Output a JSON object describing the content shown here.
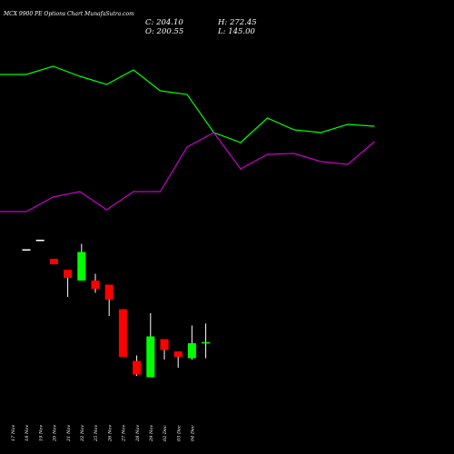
{
  "header": {
    "title": "MCX 9900  PE Options  Chart MunafaSutra.com",
    "close": "C: 204.10",
    "high": "H: 272.45",
    "open": "O: 200.55",
    "low": "L: 145.00"
  },
  "colors": {
    "background": "#000000",
    "bull": "#00ff00",
    "bear": "#ff0000",
    "neutral": "#ffffff",
    "wick": "#ffffff",
    "upper_line": "#00ff00",
    "lower_line": "#cc00cc"
  },
  "chart_data": {
    "type": "candlestick",
    "categories": [
      "17 Nov",
      "18 Nov",
      "19 Nov",
      "20 Nov",
      "21 Nov",
      "22 Nov",
      "25 Nov",
      "26 Nov",
      "27 Nov",
      "28 Nov",
      "29 Nov",
      "02 Dec",
      "03 Dec",
      "04 Dec"
    ],
    "candles": [
      {
        "open": 545,
        "high": 545,
        "low": 545,
        "close": 545
      },
      {
        "open": 580,
        "high": 580,
        "low": 580,
        "close": 580
      },
      {
        "open": 510,
        "high": 510,
        "low": 490,
        "close": 490
      },
      {
        "open": 470,
        "high": 470,
        "low": 370,
        "close": 440
      },
      {
        "open": 430,
        "high": 565,
        "low": 430,
        "close": 535
      },
      {
        "open": 430,
        "high": 455,
        "low": 385,
        "close": 400
      },
      {
        "open": 415,
        "high": 415,
        "low": 300,
        "close": 360
      },
      {
        "open": 325,
        "high": 325,
        "low": 150,
        "close": 150
      },
      {
        "open": 135,
        "high": 155,
        "low": 80,
        "close": 85
      },
      {
        "open": 75,
        "high": 310,
        "low": 75,
        "close": 225
      },
      {
        "open": 215,
        "high": 215,
        "low": 140,
        "close": 175
      },
      {
        "open": 170,
        "high": 170,
        "low": 110,
        "close": 150
      },
      {
        "open": 145,
        "high": 265,
        "low": 140,
        "close": 200
      },
      {
        "open": 200.55,
        "high": 272.45,
        "low": 145.0,
        "close": 204.1
      }
    ],
    "upper_line": [
      82,
      82,
      73,
      84,
      93,
      77,
      100,
      104,
      146,
      157,
      130,
      143,
      146,
      137,
      139
    ],
    "lower_line": [
      233,
      233,
      217,
      211,
      231,
      211,
      211,
      162,
      146,
      186,
      170,
      169,
      178,
      181,
      156
    ],
    "price_range": [
      60,
      610
    ]
  }
}
